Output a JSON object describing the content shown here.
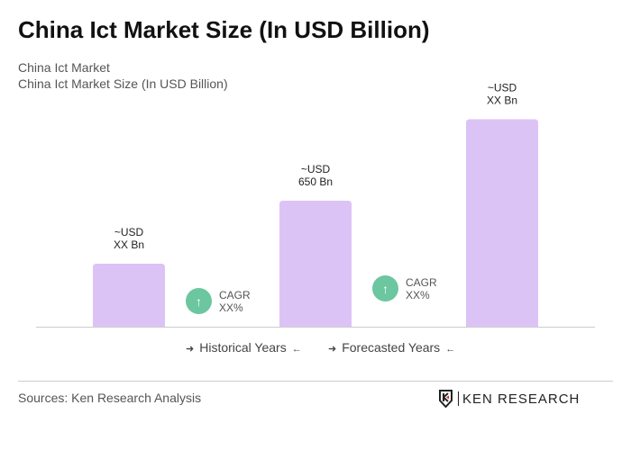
{
  "title": "China Ict Market Size (In USD Billion)",
  "subtitle1": "China Ict Market",
  "subtitle2": "China Ict Market Size (In USD Billion)",
  "chart_data": {
    "type": "bar",
    "categories": [
      "",
      "",
      ""
    ],
    "values": [
      325,
      650,
      1070
    ],
    "data_labels": [
      [
        "~USD",
        "XX Bn"
      ],
      [
        "~USD",
        "650 Bn"
      ],
      [
        "~USD",
        "XX Bn"
      ]
    ],
    "bar_color": "#dcc3f6",
    "grid": false
  },
  "cagr": [
    {
      "label": "CAGR",
      "value": "XX%"
    },
    {
      "label": "CAGR",
      "value": "XX%"
    }
  ],
  "cagr_color": "#6cc6a0",
  "legend": {
    "historical": "Historical Years",
    "forecasted": "Forecasted Years"
  },
  "sources": "Sources: Ken Research Analysis",
  "logo_text": "KEN RESEARCH"
}
